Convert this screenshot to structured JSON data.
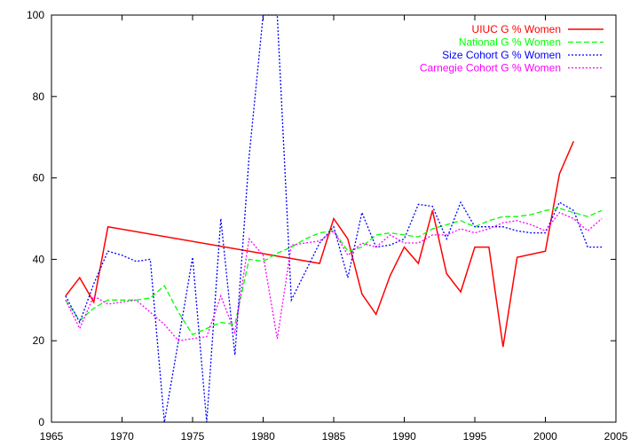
{
  "chart_data": {
    "type": "line",
    "title": "",
    "xlabel": "",
    "ylabel": "",
    "xlim": [
      1965,
      2005
    ],
    "ylim": [
      0,
      100
    ],
    "xticks": [
      1965,
      1970,
      1975,
      1980,
      1985,
      1990,
      1995,
      2000,
      2005
    ],
    "yticks": [
      0,
      20,
      40,
      60,
      80,
      100
    ],
    "grid": false,
    "legend_position": "top-right",
    "series": [
      {
        "name": "UIUC G % Women",
        "color": "#ff0000",
        "dash": "solid",
        "x": [
          1966,
          1967,
          1968,
          1969,
          1984,
          1985,
          1986,
          1987,
          1988,
          1989,
          1990,
          1991,
          1992,
          1993,
          1994,
          1995,
          1996,
          1997,
          1998,
          2000,
          2001,
          2002
        ],
        "y": [
          31,
          35.5,
          29.5,
          48,
          39,
          50,
          45,
          31.5,
          26.5,
          36,
          43,
          39,
          52,
          36.5,
          32,
          43,
          43,
          18.5,
          40.5,
          42,
          61,
          69
        ]
      },
      {
        "name": "National G % Women",
        "color": "#00ff00",
        "dash": "dashed",
        "x": [
          1966,
          1967,
          1968,
          1969,
          1970,
          1971,
          1972,
          1973,
          1974,
          1975,
          1976,
          1977,
          1978,
          1979,
          1980,
          1981,
          1982,
          1983,
          1984,
          1985,
          1986,
          1987,
          1988,
          1989,
          1990,
          1991,
          1992,
          1993,
          1994,
          1995,
          1996,
          1997,
          1998,
          1999,
          2000,
          2001,
          2002,
          2003,
          2004
        ],
        "y": [
          30,
          25,
          28,
          30,
          30,
          30,
          30.5,
          33.5,
          27,
          21.5,
          23,
          24.5,
          24,
          40,
          39.5,
          41.5,
          43,
          45,
          46.5,
          47,
          42,
          43,
          46,
          46.5,
          46,
          45.5,
          47.5,
          48.5,
          49.5,
          48,
          49.5,
          50.5,
          50.5,
          51,
          52,
          52.5,
          51.5,
          50.5,
          52
        ]
      },
      {
        "name": "Size Cohort G % Women",
        "color": "#0000ff",
        "dash": "dotted",
        "x": [
          1966,
          1967,
          1968,
          1969,
          1970,
          1971,
          1972,
          1973,
          1974,
          1975,
          1976,
          1977,
          1978,
          1979,
          1980,
          1981,
          1982,
          1983,
          1984,
          1985,
          1986,
          1987,
          1988,
          1989,
          1990,
          1991,
          1992,
          1993,
          1994,
          1995,
          1996,
          1997,
          1998,
          1999,
          2000,
          2001,
          2002,
          2003,
          2004
        ],
        "y": [
          31,
          24.5,
          34,
          42,
          41,
          39.5,
          40,
          0,
          20,
          40.5,
          0,
          50,
          16.5,
          65,
          100,
          100,
          30,
          37,
          44,
          48,
          35.5,
          51.5,
          43,
          43.5,
          45,
          53.5,
          53,
          45,
          54,
          48,
          48,
          48,
          47,
          46.5,
          46.5,
          54,
          52,
          43,
          43
        ]
      },
      {
        "name": "Carnegie Cohort G % Women",
        "color": "#ff00ff",
        "dash": "dotted",
        "x": [
          1966,
          1967,
          1968,
          1969,
          1970,
          1971,
          1972,
          1973,
          1974,
          1975,
          1976,
          1977,
          1978,
          1979,
          1980,
          1981,
          1982,
          1983,
          1984,
          1985,
          1986,
          1987,
          1988,
          1989,
          1990,
          1991,
          1992,
          1993,
          1994,
          1995,
          1996,
          1997,
          1998,
          1999,
          2000,
          2001,
          2002,
          2003,
          2004
        ],
        "y": [
          30,
          23,
          31,
          29,
          29.5,
          30,
          27,
          24,
          20,
          20.5,
          21,
          31,
          22,
          45,
          41,
          20.5,
          43.5,
          44,
          44.5,
          47,
          41,
          44,
          43,
          46,
          44,
          44,
          46,
          46,
          47.5,
          46.5,
          47.5,
          49,
          49.5,
          48.5,
          47,
          51.5,
          50,
          47,
          50
        ]
      }
    ]
  }
}
